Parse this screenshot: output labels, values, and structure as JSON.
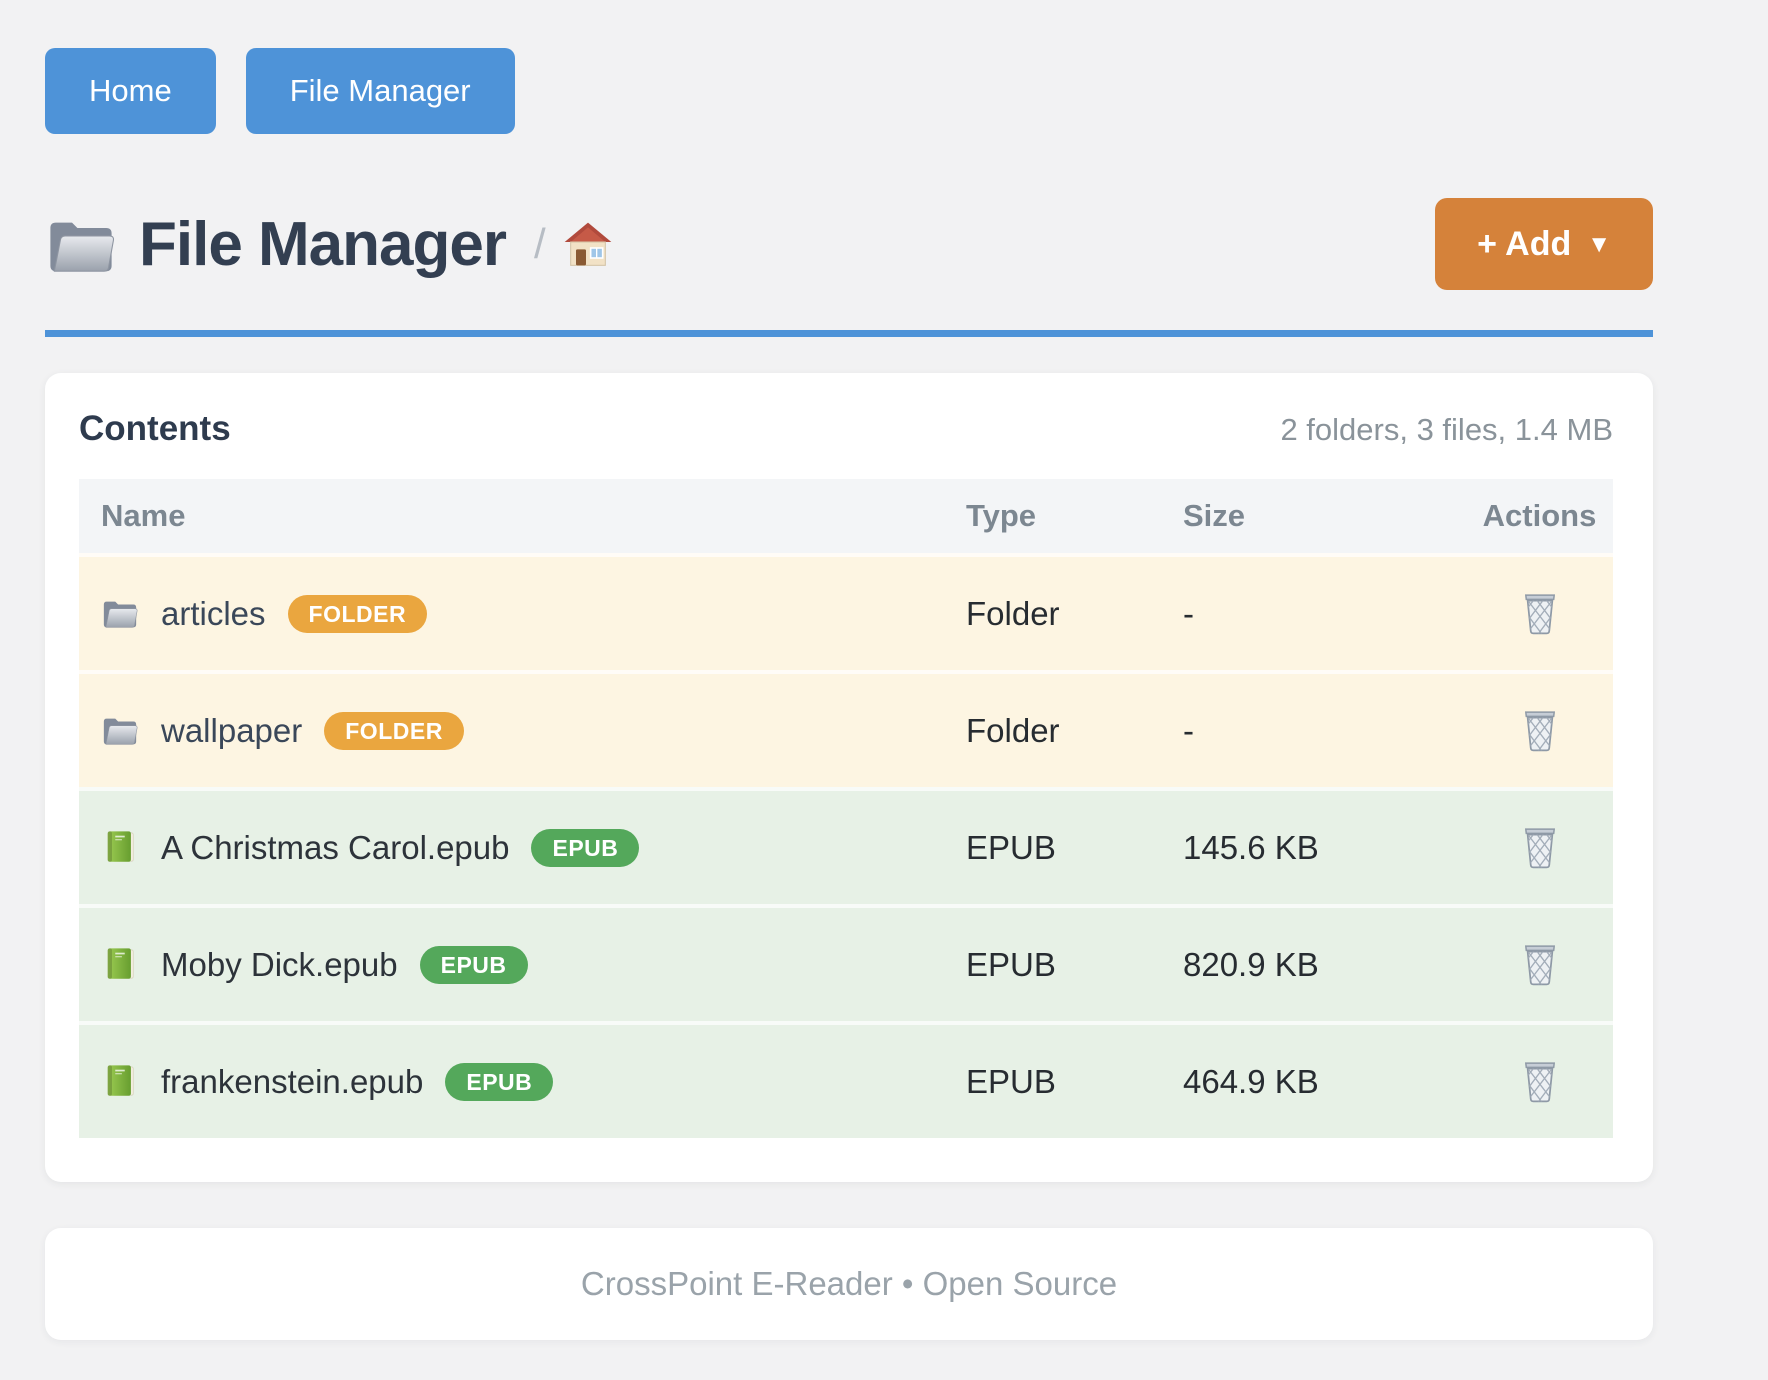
{
  "nav": {
    "buttons": [
      {
        "label": "Home"
      },
      {
        "label": "File Manager"
      }
    ]
  },
  "header": {
    "title": "File Manager",
    "title_icon": "folder-icon",
    "breadcrumb_separator": "/",
    "breadcrumb_home_icon": "house-icon",
    "add_button": {
      "label": "+ Add",
      "caret": "▼"
    }
  },
  "card": {
    "title": "Contents",
    "summary": "2 folders, 3 files, 1.4 MB"
  },
  "table": {
    "headers": [
      "Name",
      "Type",
      "Size",
      "Actions"
    ],
    "action_icon": "trash-icon",
    "rows": [
      {
        "name": "articles",
        "icon": "folder-icon",
        "kind": "folder",
        "badge": "FOLDER",
        "type": "Folder",
        "size": "-"
      },
      {
        "name": "wallpaper",
        "icon": "folder-icon",
        "kind": "folder",
        "badge": "FOLDER",
        "type": "Folder",
        "size": "-"
      },
      {
        "name": "A Christmas Carol.epub",
        "icon": "book-icon",
        "kind": "epub",
        "badge": "EPUB",
        "type": "EPUB",
        "size": "145.6 KB"
      },
      {
        "name": "Moby Dick.epub",
        "icon": "book-icon",
        "kind": "epub",
        "badge": "EPUB",
        "type": "EPUB",
        "size": "820.9 KB"
      },
      {
        "name": "frankenstein.epub",
        "icon": "book-icon",
        "kind": "epub",
        "badge": "EPUB",
        "type": "EPUB",
        "size": "464.9 KB"
      }
    ]
  },
  "footer": {
    "text": "CrossPoint E-Reader • Open Source"
  },
  "colors": {
    "accent_blue": "#4e93d8",
    "add_orange": "#d5823a",
    "badge_folder_orange": "#eaa63f",
    "badge_epub_green": "#54a85b",
    "row_folder_bg": "#fdf5e2",
    "row_epub_bg": "#e7f1e6",
    "page_bg": "#f2f2f3",
    "heading_navy": "#333f51"
  }
}
